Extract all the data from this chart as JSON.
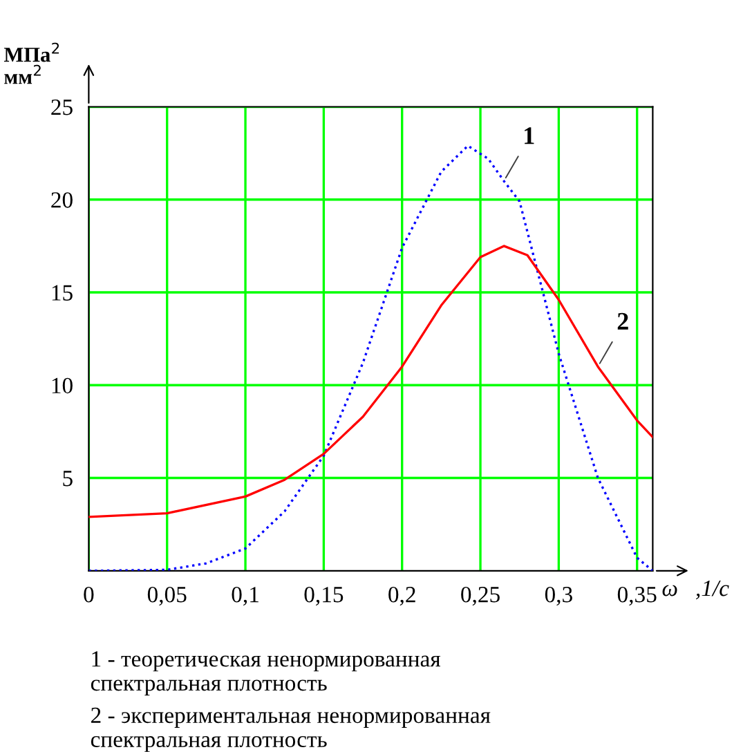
{
  "chart_data": {
    "type": "line",
    "ylabel": "МПа$^{2}$\nмм$^{2}$",
    "xlabel": "ω   ,1/c",
    "xlim": [
      0,
      0.36
    ],
    "ylim": [
      0,
      25
    ],
    "xticks": [
      0,
      {
        "value": 0.05,
        "label": "0,05"
      },
      {
        "value": 0.1,
        "label": "0,1"
      },
      {
        "value": 0.15,
        "label": "0,15"
      },
      {
        "value": 0.2,
        "label": "0,2"
      },
      {
        "value": 0.25,
        "label": "0,25"
      },
      {
        "value": 0.3,
        "label": "0,3"
      },
      {
        "value": 0.35,
        "label": "0,35"
      }
    ],
    "yticks": [
      5,
      10,
      15,
      20,
      25
    ],
    "grid": true,
    "legend": false,
    "marker": "none",
    "series": [
      {
        "color": "#0000ff",
        "line_style": "dotted",
        "x": [
          0,
          0.05,
          0.075,
          0.1,
          0.125,
          0.15,
          0.175,
          0.2,
          0.225,
          0.242,
          0.255,
          0.265,
          0.275,
          0.3,
          0.325,
          0.35,
          0.36
        ],
        "values": [
          0,
          0.05,
          0.4,
          1.2,
          3.2,
          6.2,
          11.2,
          17.4,
          21.5,
          22.9,
          22.2,
          21,
          19.9,
          11.7,
          5,
          0.7,
          0
        ]
      },
      {
        "color": "#ff0000",
        "line_style": "solid",
        "x": [
          0,
          0.05,
          0.1,
          0.125,
          0.15,
          0.175,
          0.2,
          0.225,
          0.25,
          0.265,
          0.28,
          0.3,
          0.325,
          0.35,
          0.36
        ],
        "values": [
          2.9,
          3.1,
          4,
          4.9,
          6.3,
          8.3,
          11,
          14.3,
          16.9,
          17.5,
          17,
          14.6,
          11,
          8.1,
          7.2
        ]
      }
    ],
    "annotations": [
      {
        "text": "1",
        "x": 0.265,
        "y": 21
      },
      {
        "text": "2",
        "x": 0.325,
        "y": 11
      },
      "1 - теоретическая ненормированная\nспектральная плотность",
      "2 - экспериментальная ненормированная\nспектральная плотность"
    ]
  }
}
